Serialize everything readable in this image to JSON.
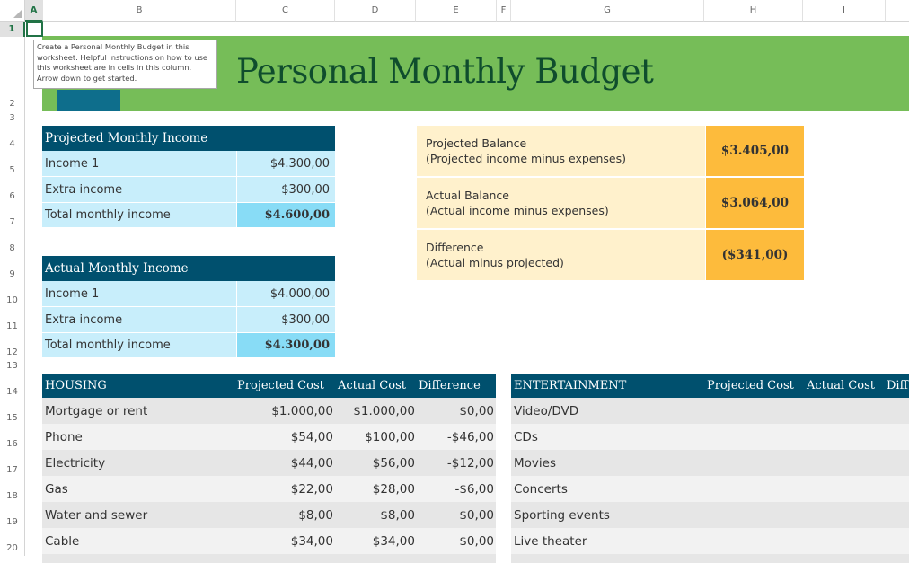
{
  "sheet": {
    "columns": [
      "A",
      "B",
      "C",
      "D",
      "E",
      "F",
      "G",
      "H",
      "I"
    ],
    "selected_column": "A",
    "rows": [
      "1",
      "2",
      "3",
      "4",
      "5",
      "6",
      "7",
      "8",
      "9",
      "10",
      "11",
      "12",
      "13",
      "14",
      "15",
      "16",
      "17",
      "18",
      "19",
      "20"
    ],
    "selected_row": "1"
  },
  "tooltip": "Create a Personal Monthly Budget in this worksheet. Helpful instructions on how to use this worksheet are in cells in this column. Arrow down to get started.",
  "title": "Personal Monthly Budget",
  "projected_income": {
    "header": "Projected Monthly Income",
    "rows": [
      {
        "label": "Income 1",
        "value": "$4.300,00"
      },
      {
        "label": "Extra income",
        "value": "$300,00"
      }
    ],
    "total": {
      "label": "Total monthly income",
      "value": "$4.600,00"
    }
  },
  "actual_income": {
    "header": "Actual Monthly Income",
    "rows": [
      {
        "label": "Income 1",
        "value": "$4.000,00"
      },
      {
        "label": "Extra income",
        "value": "$300,00"
      }
    ],
    "total": {
      "label": "Total monthly income",
      "value": "$4.300,00"
    }
  },
  "balance": [
    {
      "title": "Projected Balance",
      "subtitle": "(Projected income minus expenses)",
      "value": "$3.405,00"
    },
    {
      "title": "Actual Balance",
      "subtitle": "(Actual income minus expenses)",
      "value": "$3.064,00"
    },
    {
      "title": "Difference",
      "subtitle": "(Actual minus projected)",
      "value": "($341,00)"
    }
  ],
  "housing": {
    "header": "HOUSING",
    "columns": [
      "Projected Cost",
      "Actual Cost",
      "Difference"
    ],
    "rows": [
      {
        "item": "Mortgage or rent",
        "projected": "$1.000,00",
        "actual": "$1.000,00",
        "difference": "$0,00"
      },
      {
        "item": "Phone",
        "projected": "$54,00",
        "actual": "$100,00",
        "difference": "-$46,00"
      },
      {
        "item": "Electricity",
        "projected": "$44,00",
        "actual": "$56,00",
        "difference": "-$12,00"
      },
      {
        "item": "Gas",
        "projected": "$22,00",
        "actual": "$28,00",
        "difference": "-$6,00"
      },
      {
        "item": "Water and sewer",
        "projected": "$8,00",
        "actual": "$8,00",
        "difference": "$0,00"
      },
      {
        "item": "Cable",
        "projected": "$34,00",
        "actual": "$34,00",
        "difference": "$0,00"
      }
    ]
  },
  "entertainment": {
    "header": "ENTERTAINMENT",
    "columns": [
      "Projected Cost",
      "Actual Cost",
      "Diff"
    ],
    "rows": [
      "Video/DVD",
      "CDs",
      "Movies",
      "Concerts",
      "Sporting events",
      "Live theater"
    ]
  },
  "colors": {
    "banner": "#76bd58",
    "banner_accent": "#0e6e8c",
    "title": "#0f4d2d",
    "header_bar": "#00506e",
    "income_row": "#c8eefb",
    "income_total": "#88dcf6",
    "balance_label": "#fff1cc",
    "balance_value": "#fdbb3c",
    "table_row_dark": "#e6e6e6",
    "table_row_light": "#f2f2f2"
  }
}
